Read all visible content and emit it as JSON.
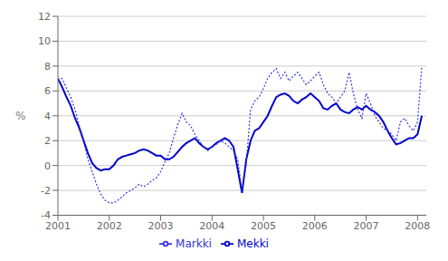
{
  "chart_data": {
    "type": "line",
    "ylabel": "%",
    "xlim": [
      2001.0,
      2008.17
    ],
    "xticks": [
      2001,
      2002,
      2003,
      2004,
      2005,
      2006,
      2007,
      2008
    ],
    "ylim": [
      -4,
      12
    ],
    "yticks": [
      -4,
      -2,
      0,
      2,
      4,
      6,
      8,
      10,
      12
    ],
    "grid": "y",
    "legend": "bottom",
    "x": [
      2001.0,
      2001.083,
      2001.167,
      2001.25,
      2001.333,
      2001.417,
      2001.5,
      2001.583,
      2001.667,
      2001.75,
      2001.833,
      2001.917,
      2002.0,
      2002.083,
      2002.167,
      2002.25,
      2002.333,
      2002.417,
      2002.5,
      2002.583,
      2002.667,
      2002.75,
      2002.833,
      2002.917,
      2003.0,
      2003.083,
      2003.167,
      2003.25,
      2003.333,
      2003.417,
      2003.5,
      2003.583,
      2003.667,
      2003.75,
      2003.833,
      2003.917,
      2004.0,
      2004.083,
      2004.167,
      2004.25,
      2004.333,
      2004.417,
      2004.5,
      2004.583,
      2004.667,
      2004.75,
      2004.833,
      2004.917,
      2005.0,
      2005.083,
      2005.167,
      2005.25,
      2005.333,
      2005.417,
      2005.5,
      2005.583,
      2005.667,
      2005.75,
      2005.833,
      2005.917,
      2006.0,
      2006.083,
      2006.167,
      2006.25,
      2006.333,
      2006.417,
      2006.5,
      2006.583,
      2006.667,
      2006.75,
      2006.833,
      2006.917,
      2007.0,
      2007.083,
      2007.167,
      2007.25,
      2007.333,
      2007.417,
      2007.5,
      2007.583,
      2007.667,
      2007.75,
      2007.833,
      2007.917,
      2008.0,
      2008.083
    ],
    "series": [
      {
        "name": "Mekki",
        "color": "#0000CC",
        "line_style": "solid",
        "values": [
          7.0,
          6.3,
          5.5,
          4.8,
          3.8,
          3.0,
          2.0,
          1.0,
          0.2,
          -0.2,
          -0.4,
          -0.3,
          -0.3,
          0.0,
          0.5,
          0.7,
          0.8,
          0.9,
          1.0,
          1.2,
          1.3,
          1.2,
          1.0,
          0.8,
          0.8,
          0.5,
          0.5,
          0.7,
          1.1,
          1.5,
          1.8,
          2.0,
          2.2,
          1.8,
          1.5,
          1.3,
          1.5,
          1.8,
          2.0,
          2.2,
          2.0,
          1.5,
          -0.3,
          -2.2,
          0.5,
          2.0,
          2.8,
          3.0,
          3.5,
          4.0,
          4.8,
          5.5,
          5.7,
          5.8,
          5.6,
          5.2,
          5.0,
          5.3,
          5.5,
          5.8,
          5.5,
          5.2,
          4.6,
          4.5,
          4.8,
          5.0,
          4.5,
          4.3,
          4.2,
          4.5,
          4.7,
          4.5,
          4.8,
          4.5,
          4.3,
          4.0,
          3.5,
          2.8,
          2.2,
          1.7,
          1.8,
          2.0,
          2.2,
          2.2,
          2.5,
          4.0
        ]
      },
      {
        "name": "Markki",
        "color": "#3333DD",
        "line_style": "dotted",
        "values": [
          6.8,
          7.0,
          6.2,
          5.5,
          4.5,
          3.2,
          2.0,
          0.5,
          -0.5,
          -1.5,
          -2.3,
          -2.8,
          -3.0,
          -3.0,
          -2.8,
          -2.5,
          -2.2,
          -2.0,
          -1.8,
          -1.5,
          -1.7,
          -1.5,
          -1.2,
          -1.0,
          -0.5,
          0.3,
          1.0,
          2.2,
          3.3,
          4.2,
          3.5,
          3.2,
          2.5,
          2.0,
          1.5,
          1.2,
          1.5,
          1.7,
          2.0,
          1.8,
          1.5,
          1.2,
          0.5,
          -2.1,
          0.2,
          4.5,
          5.2,
          5.5,
          6.2,
          7.0,
          7.5,
          7.8,
          7.0,
          7.5,
          6.8,
          7.2,
          7.5,
          7.0,
          6.5,
          6.8,
          7.2,
          7.5,
          6.5,
          5.8,
          5.5,
          5.0,
          5.5,
          6.0,
          7.5,
          5.8,
          4.5,
          3.8,
          5.8,
          5.0,
          4.0,
          3.5,
          3.0,
          2.8,
          2.5,
          2.0,
          3.5,
          3.8,
          3.2,
          2.8,
          3.5,
          8.0
        ]
      }
    ]
  }
}
